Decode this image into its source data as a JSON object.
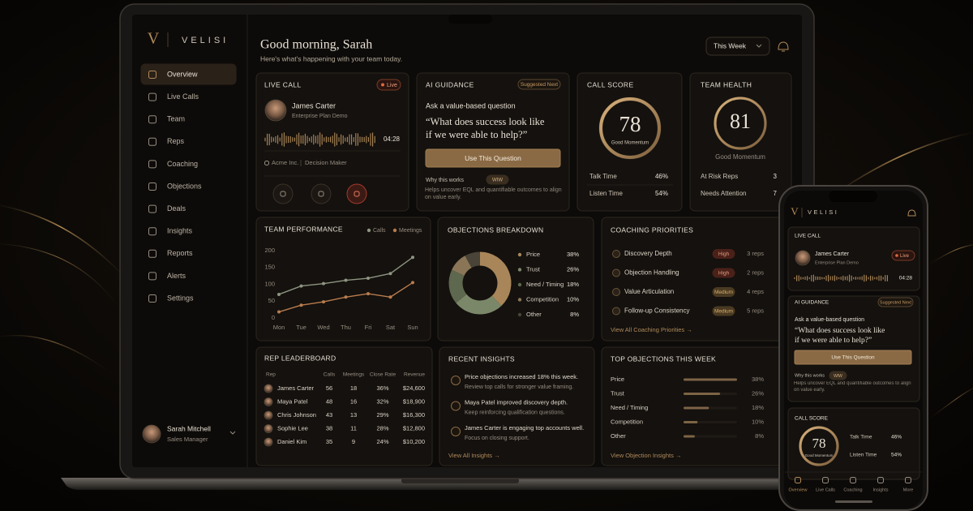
{
  "brand": {
    "logo": "V",
    "name": "VELISI"
  },
  "nav": [
    "Overview",
    "Live Calls",
    "Team",
    "Reps",
    "Coaching",
    "Objections",
    "Deals",
    "Insights",
    "Reports",
    "Alerts",
    "Settings"
  ],
  "user": {
    "name": "Sarah Mitchell",
    "role": "Sales Manager"
  },
  "header": {
    "title": "Good morning, Sarah",
    "subtitle": "Here's what's happening with your team today.",
    "period": "This Week"
  },
  "live_call": {
    "title": "LIVE CALL",
    "badge": "Live",
    "name": "James Carter",
    "plan": "Enterprise Plan Demo",
    "duration": "04:28",
    "company": "Acme Inc.",
    "role": "Decision Maker"
  },
  "ai_guidance": {
    "title": "AI GUIDANCE",
    "badge": "Suggested Next",
    "prompt": "Ask a value-based question",
    "quote": [
      "“What does success look like",
      "if we were able to help?”"
    ],
    "button": "Use This Question",
    "why_label": "Why this works",
    "why_badge": "WIW",
    "why_text": "Helps uncover EQL and quantifiable outcomes to align on value early."
  },
  "call_score": {
    "title": "CALL SCORE",
    "score": 78,
    "label": "Good Momentum",
    "stats": [
      {
        "label": "Talk Time",
        "value": "46%"
      },
      {
        "label": "Listen Time",
        "value": "54%"
      }
    ]
  },
  "team_health": {
    "title": "TEAM HEALTH",
    "score": 81,
    "label": "Good Momentum",
    "stats": [
      {
        "label": "At Risk Reps",
        "value": 3
      },
      {
        "label": "Needs Attention",
        "value": 7
      }
    ]
  },
  "team_performance": {
    "type": "line",
    "title": "TEAM PERFORMANCE",
    "categories": [
      "Mon",
      "Tue",
      "Wed",
      "Thu",
      "Fri",
      "Sat",
      "Sun"
    ],
    "series": [
      {
        "name": "Calls",
        "color": "#8e9581",
        "values": [
          70,
          95,
          102,
          112,
          118,
          132,
          180
        ]
      },
      {
        "name": "Meetings",
        "color": "#b97c4e",
        "values": [
          18,
          38,
          48,
          62,
          72,
          62,
          105
        ]
      }
    ],
    "ylim": [
      0,
      200
    ],
    "yticks": [
      0,
      50,
      100,
      150,
      200
    ]
  },
  "objections": {
    "type": "pie",
    "title": "OBJECTIONS BREAKDOWN",
    "categories": [
      "Price",
      "Trust",
      "Need / Timing",
      "Competition",
      "Other"
    ],
    "values": [
      38,
      26,
      18,
      10,
      8
    ],
    "value_labels": [
      "38%",
      "26%",
      "18%",
      "10%",
      "8%"
    ],
    "colors": [
      "#a8865a",
      "#7b8769",
      "#5d684f",
      "#8a7657",
      "#4a4337"
    ]
  },
  "coaching": {
    "title": "COACHING PRIORITIES",
    "items": [
      {
        "name": "Discovery Depth",
        "level": "High",
        "reps": "3 reps"
      },
      {
        "name": "Objection Handling",
        "level": "High",
        "reps": "2 reps"
      },
      {
        "name": "Value Articulation",
        "level": "Medium",
        "reps": "4 reps"
      },
      {
        "name": "Follow-up Consistency",
        "level": "Medium",
        "reps": "5 reps"
      }
    ],
    "link": "View All Coaching Priorities →"
  },
  "leaderboard": {
    "title": "REP LEADERBOARD",
    "columns": [
      "Rep",
      "Calls",
      "Meetings",
      "Close Rate",
      "Revenue"
    ],
    "rows": [
      [
        "James Carter",
        56,
        18,
        "36%",
        "$24,600"
      ],
      [
        "Maya Patel",
        48,
        16,
        "32%",
        "$18,900"
      ],
      [
        "Chris Johnson",
        43,
        13,
        "29%",
        "$16,300"
      ],
      [
        "Sophie Lee",
        38,
        11,
        "28%",
        "$12,800"
      ],
      [
        "Daniel Kim",
        35,
        9,
        "24%",
        "$10,200"
      ]
    ]
  },
  "insights": {
    "title": "RECENT INSIGHTS",
    "items": [
      {
        "title": "Price objections increased 18% this week.",
        "text": "Review top calls for stronger value framing."
      },
      {
        "title": "Maya Patel improved discovery depth.",
        "text": "Keep reinforcing qualification questions."
      },
      {
        "title": "James Carter is engaging top accounts well.",
        "text": "Focus on closing support."
      }
    ],
    "link": "View All Insights →"
  },
  "top_objections": {
    "type": "bar",
    "title": "TOP OBJECTIONS THIS WEEK",
    "categories": [
      "Price",
      "Trust",
      "Need / Timing",
      "Competition",
      "Other"
    ],
    "values": [
      38,
      26,
      18,
      10,
      8
    ],
    "value_labels": [
      "38%",
      "26%",
      "18%",
      "10%",
      "8%"
    ],
    "color": "#7d6446",
    "link": "View Objection Insights →"
  },
  "phone_nav": [
    "Overview",
    "Live Calls",
    "Coaching",
    "Insights",
    "More"
  ]
}
